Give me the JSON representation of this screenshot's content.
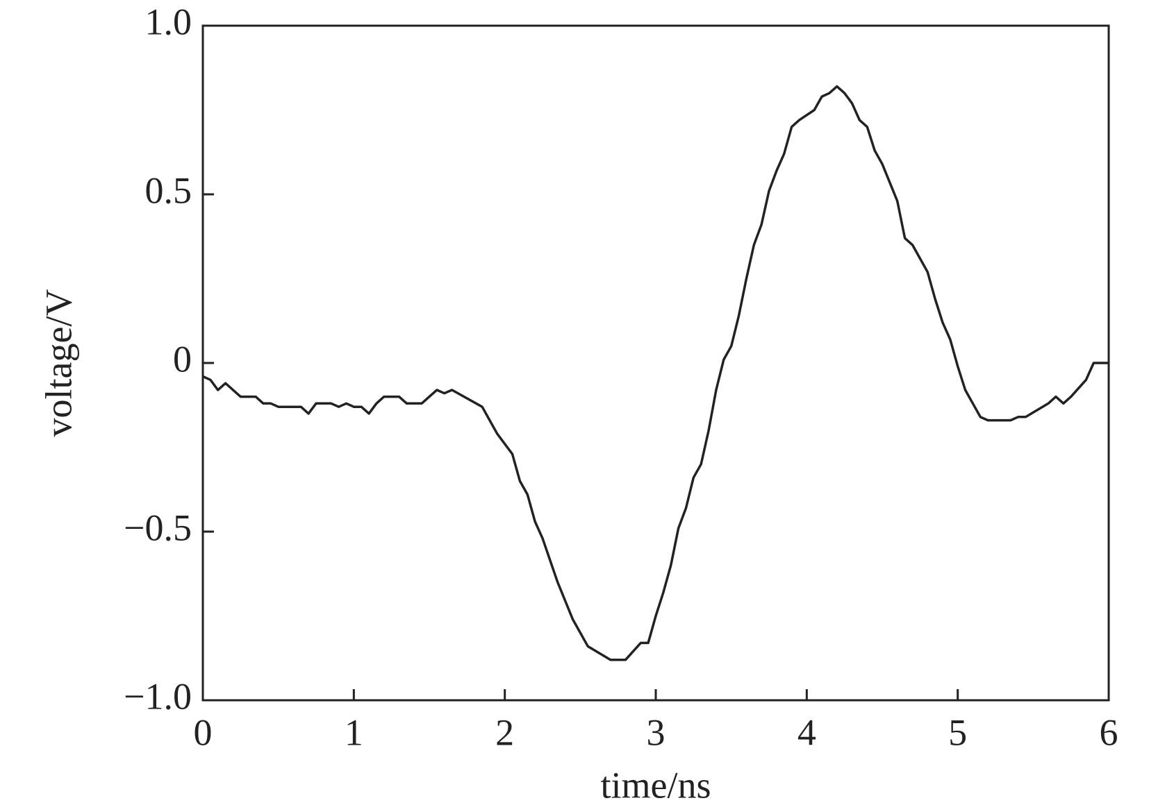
{
  "chart_data": {
    "type": "line",
    "xlabel": "time/ns",
    "ylabel": "voltage/V",
    "xlim": [
      0,
      6
    ],
    "xticks": [
      0,
      1,
      2,
      3,
      4,
      5,
      6
    ],
    "ylim": [
      -1.0,
      1.0
    ],
    "yticks": [
      {
        "value": -1.0,
        "label": "−1.0"
      },
      {
        "value": -0.5,
        "label": "−0.5"
      },
      0,
      0.5,
      {
        "value": 1.0,
        "label": "1.0"
      }
    ],
    "color": "#222222",
    "x": [
      0,
      0.05,
      0.1,
      0.15,
      0.2,
      0.25,
      0.35,
      0.4,
      0.45,
      0.5,
      0.65,
      0.7,
      0.75,
      0.85,
      0.9,
      0.95,
      1.0,
      1.05,
      1.1,
      1.15,
      1.2,
      1.3,
      1.35,
      1.45,
      1.5,
      1.55,
      1.6,
      1.65,
      1.85,
      1.95,
      2.05,
      2.1,
      2.15,
      2.2,
      2.25,
      2.35,
      2.45,
      2.55,
      2.7,
      2.8,
      2.9,
      2.95,
      3.0,
      3.05,
      3.1,
      3.15,
      3.2,
      3.25,
      3.3,
      3.35,
      3.4,
      3.45,
      3.5,
      3.55,
      3.6,
      3.65,
      3.7,
      3.75,
      3.8,
      3.85,
      3.9,
      3.95,
      4.05,
      4.1,
      4.15,
      4.2,
      4.25,
      4.3,
      4.35,
      4.4,
      4.45,
      4.5,
      4.6,
      4.65,
      4.7,
      4.8,
      4.85,
      4.9,
      4.95,
      5.0,
      5.05,
      5.15,
      5.2,
      5.35,
      5.4,
      5.45,
      5.6,
      5.65,
      5.7,
      5.75,
      5.85,
      5.9,
      6.0
    ],
    "values": [
      -0.04,
      -0.05,
      -0.08,
      -0.06,
      -0.08,
      -0.1,
      -0.1,
      -0.12,
      -0.12,
      -0.13,
      -0.13,
      -0.15,
      -0.12,
      -0.12,
      -0.13,
      -0.12,
      -0.13,
      -0.13,
      -0.15,
      -0.12,
      -0.1,
      -0.1,
      -0.12,
      -0.12,
      -0.1,
      -0.08,
      -0.09,
      -0.08,
      -0.13,
      -0.21,
      -0.27,
      -0.35,
      -0.39,
      -0.47,
      -0.52,
      -0.65,
      -0.76,
      -0.84,
      -0.88,
      -0.88,
      -0.83,
      -0.83,
      -0.75,
      -0.68,
      -0.6,
      -0.49,
      -0.43,
      -0.34,
      -0.3,
      -0.2,
      -0.08,
      0.01,
      0.05,
      0.14,
      0.25,
      0.35,
      0.41,
      0.51,
      0.57,
      0.62,
      0.7,
      0.72,
      0.75,
      0.79,
      0.8,
      0.82,
      0.8,
      0.77,
      0.72,
      0.7,
      0.63,
      0.59,
      0.48,
      0.37,
      0.35,
      0.27,
      0.19,
      0.12,
      0.07,
      -0.01,
      -0.08,
      -0.16,
      -0.17,
      -0.17,
      -0.16,
      -0.16,
      -0.12,
      -0.1,
      -0.12,
      -0.1,
      -0.05,
      0,
      0
    ]
  }
}
